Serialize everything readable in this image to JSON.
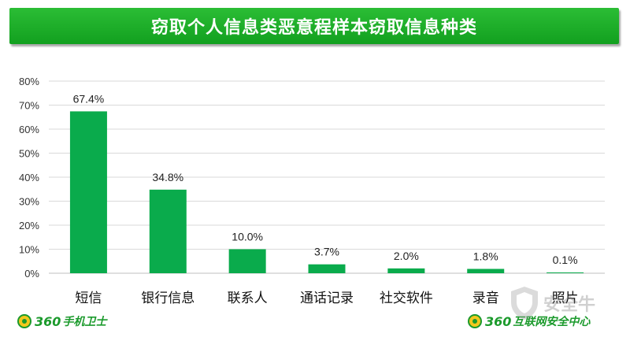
{
  "title": "窃取个人信息类恶意程样本窃取信息种类",
  "chart_data": {
    "type": "bar",
    "categories": [
      "短信",
      "银行信息",
      "联系人",
      "通话记录",
      "社交软件",
      "录音",
      "照片"
    ],
    "values": [
      67.4,
      34.8,
      10.0,
      3.7,
      2.0,
      1.8,
      0.1
    ],
    "value_labels": [
      "67.4%",
      "34.8%",
      "10.0%",
      "3.7%",
      "2.0%",
      "1.8%",
      "0.1%"
    ],
    "ylim": [
      0,
      80
    ],
    "yticks": [
      0,
      10,
      20,
      30,
      40,
      50,
      60,
      70,
      80
    ],
    "ytick_labels": [
      "0%",
      "10%",
      "20%",
      "30%",
      "40%",
      "50%",
      "60%",
      "70%",
      "80%"
    ],
    "grid": true,
    "bar_color": "#0aab4c",
    "title": "",
    "xlabel": "",
    "ylabel": ""
  },
  "footer": {
    "left_brand_number": "360",
    "left_brand_name": "手机卫士",
    "right_brand_number": "360",
    "right_brand_name": "互联网安全中心"
  },
  "watermark": {
    "text": "安全牛",
    "icon": "shield-icon"
  },
  "colors": {
    "banner": "#16a525",
    "brand": "#1b9a2c",
    "grid": "#d9d9d9"
  }
}
